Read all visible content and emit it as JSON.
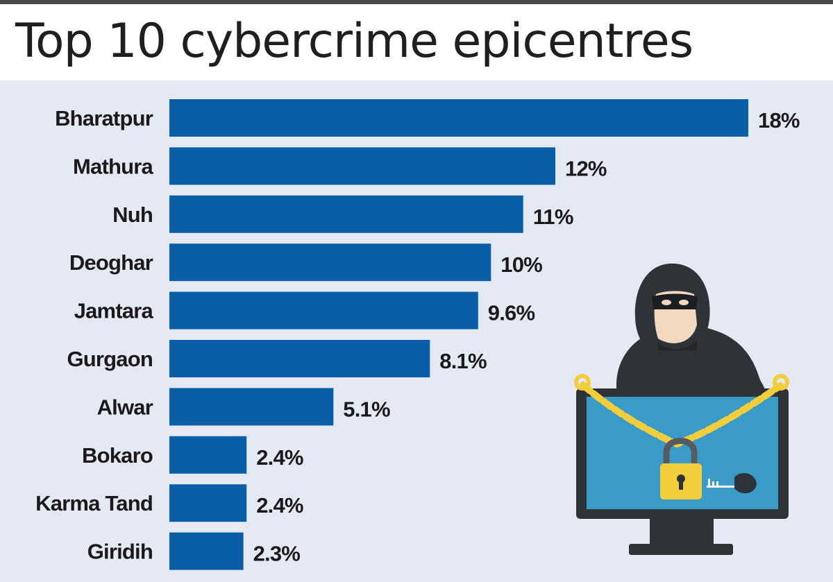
{
  "chart_data": {
    "type": "bar",
    "orientation": "horizontal",
    "title": "Top 10 cybercrime epicentres",
    "categories": [
      "Bharatpur",
      "Mathura",
      "Nuh",
      "Deoghar",
      "Jamtara",
      "Gurgaon",
      "Alwar",
      "Bokaro",
      "Karma Tand",
      "Giridih"
    ],
    "values": [
      18,
      12,
      11,
      10,
      9.6,
      8.1,
      5.1,
      2.4,
      2.4,
      2.3
    ],
    "value_labels": [
      "18%",
      "12%",
      "11%",
      "10%",
      "9.6%",
      "8.1%",
      "5.1%",
      "2.4%",
      "2.4%",
      "2.3%"
    ],
    "unit": "%",
    "xlim": [
      0,
      18
    ],
    "grid": false,
    "legend": "none"
  },
  "colors": {
    "bar": "#0a5ea8",
    "panel": "#e4e9f3",
    "text": "#1a1a1a",
    "top_rule": "#4a4a4a"
  },
  "illustration": {
    "icon": "hooded-hacker-with-chained-monitor-icon"
  }
}
